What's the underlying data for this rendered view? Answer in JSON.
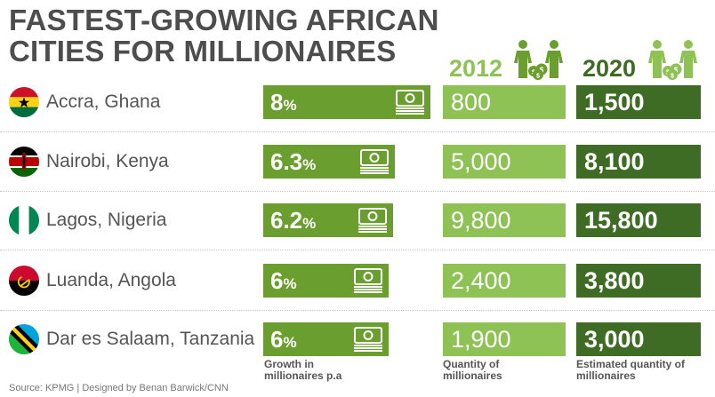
{
  "chart_data": {
    "type": "table",
    "title": "FASTEST-GROWING AFRICAN CITIES FOR MILLIONAIRES",
    "columns": [
      {
        "key": "city",
        "label": ""
      },
      {
        "key": "growth",
        "label": "Growth in millionaires p.a"
      },
      {
        "key": "q2012",
        "year": "2012",
        "label": "Quantity of millionaires"
      },
      {
        "key": "q2020",
        "year": "2020",
        "label": "Estimated quantity of millionaires"
      }
    ],
    "rows": [
      {
        "city": "Accra, Ghana",
        "flag": "ghana-flag-icon",
        "growth_value": "8",
        "growth_unit": "%",
        "growth": 8,
        "q2012": "800",
        "q2020": "1,500"
      },
      {
        "city": "Nairobi, Kenya",
        "flag": "kenya-flag-icon",
        "growth_value": "6.3",
        "growth_unit": "%",
        "growth": 6.3,
        "q2012": "5,000",
        "q2020": "8,100"
      },
      {
        "city": "Lagos, Nigeria",
        "flag": "nigeria-flag-icon",
        "growth_value": "6.2",
        "growth_unit": "%",
        "growth": 6.2,
        "q2012": "9,800",
        "q2020": "15,800"
      },
      {
        "city": "Luanda, Angola",
        "flag": "angola-flag-icon",
        "growth_value": "6",
        "growth_unit": "%",
        "growth": 6,
        "q2012": "2,400",
        "q2020": "3,800"
      },
      {
        "city": "Dar es Salaam, Tanzania",
        "flag": "tanzania-flag-icon",
        "growth_value": "6",
        "growth_unit": "%",
        "growth": 6,
        "q2012": "1,900",
        "q2020": "3,000"
      }
    ],
    "growth_max": 8,
    "source": "Source: KPMG | Designed by Benan Barwick/CNN"
  },
  "colors": {
    "growth_bar": "#6a9e2f",
    "box_2012": "#8ec255",
    "box_2020": "#3f6c24",
    "year_2012": "#8ec255",
    "year_2020": "#3f6c24",
    "people_2012": "#6a9e2f",
    "people_2020": "#8ec255"
  },
  "icons": {
    "growth_money": "money-stack-icon",
    "year_people": "people-money-bag-icon"
  }
}
